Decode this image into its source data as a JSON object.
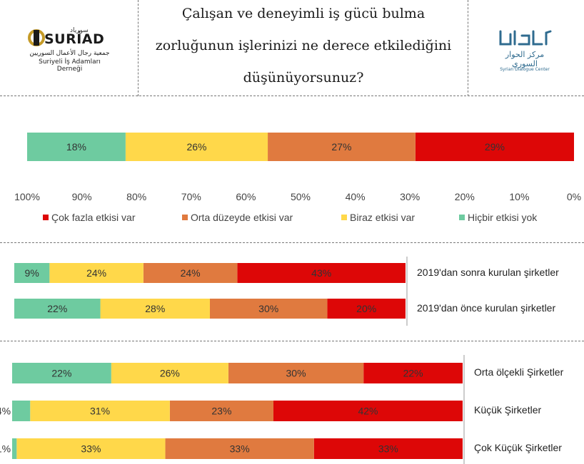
{
  "header": {
    "title_lines": [
      "Çalışan ve deneyimli iş gücü bulma",
      "zorluğunun işlerinizi ne derece etkilediğini",
      "düşünüyorsunuz?"
    ],
    "left_logo": {
      "name": "SURİAD",
      "arabic_name": "سورياد",
      "arabic_org": "جمعية رجال الأعمال السوريين",
      "turkish_org": "Suriyeli İş Adamları Derneği"
    },
    "right_logo": {
      "arabic": "مركز الحوار السوري",
      "english": "Syrian Dialogue Center"
    }
  },
  "colors": {
    "cok": "#dd0707",
    "orta": "#e07a3f",
    "biraz": "#ffd84a",
    "hic": "#6ecba0"
  },
  "legend": [
    {
      "key": "cok",
      "label": "Çok fazla etkisi var"
    },
    {
      "key": "orta",
      "label": "Orta düzeyde etkisi var"
    },
    {
      "key": "biraz",
      "label": "Biraz etkisi var"
    },
    {
      "key": "hic",
      "label": "Hiçbir etkisi yok"
    }
  ],
  "chart_data": [
    {
      "type": "bar",
      "orientation": "horizontal-stacked-100",
      "x_direction": "reversed",
      "x_ticks": [
        "100%",
        "90%",
        "80%",
        "70%",
        "60%",
        "50%",
        "40%",
        "30%",
        "20%",
        "10%",
        "0%"
      ],
      "categories": [
        ""
      ],
      "series": [
        {
          "name": "Çok fazla etkisi var",
          "values": [
            29
          ]
        },
        {
          "name": "Orta düzeyde etkisi var",
          "values": [
            27
          ]
        },
        {
          "name": "Biraz etkisi var",
          "values": [
            26
          ]
        },
        {
          "name": "Hiçbir etkisi yok",
          "values": [
            18
          ]
        }
      ]
    },
    {
      "type": "bar",
      "orientation": "horizontal-stacked-100",
      "x_direction": "reversed",
      "categories": [
        "2019'dan sonra kurulan şirketler",
        "2019'dan önce kurulan şirketler"
      ],
      "series": [
        {
          "name": "Çok fazla etkisi var",
          "values": [
            43,
            20
          ]
        },
        {
          "name": "Orta düzeyde etkisi var",
          "values": [
            24,
            30
          ]
        },
        {
          "name": "Biraz etkisi var",
          "values": [
            24,
            28
          ]
        },
        {
          "name": "Hiçbir etkisi yok",
          "values": [
            9,
            22
          ]
        }
      ]
    },
    {
      "type": "bar",
      "orientation": "horizontal-stacked-100",
      "x_direction": "reversed",
      "categories": [
        "Orta ölçekli Şirketler",
        "Küçük Şirketler",
        "Çok Küçük Şirketler"
      ],
      "series": [
        {
          "name": "Çok fazla etkisi var",
          "values": [
            22,
            42,
            33
          ]
        },
        {
          "name": "Orta düzeyde etkisi var",
          "values": [
            30,
            23,
            33
          ]
        },
        {
          "name": "Biraz etkisi var",
          "values": [
            26,
            31,
            33
          ]
        },
        {
          "name": "Hiçbir etkisi yok",
          "values": [
            22,
            4,
            1
          ]
        }
      ]
    }
  ]
}
